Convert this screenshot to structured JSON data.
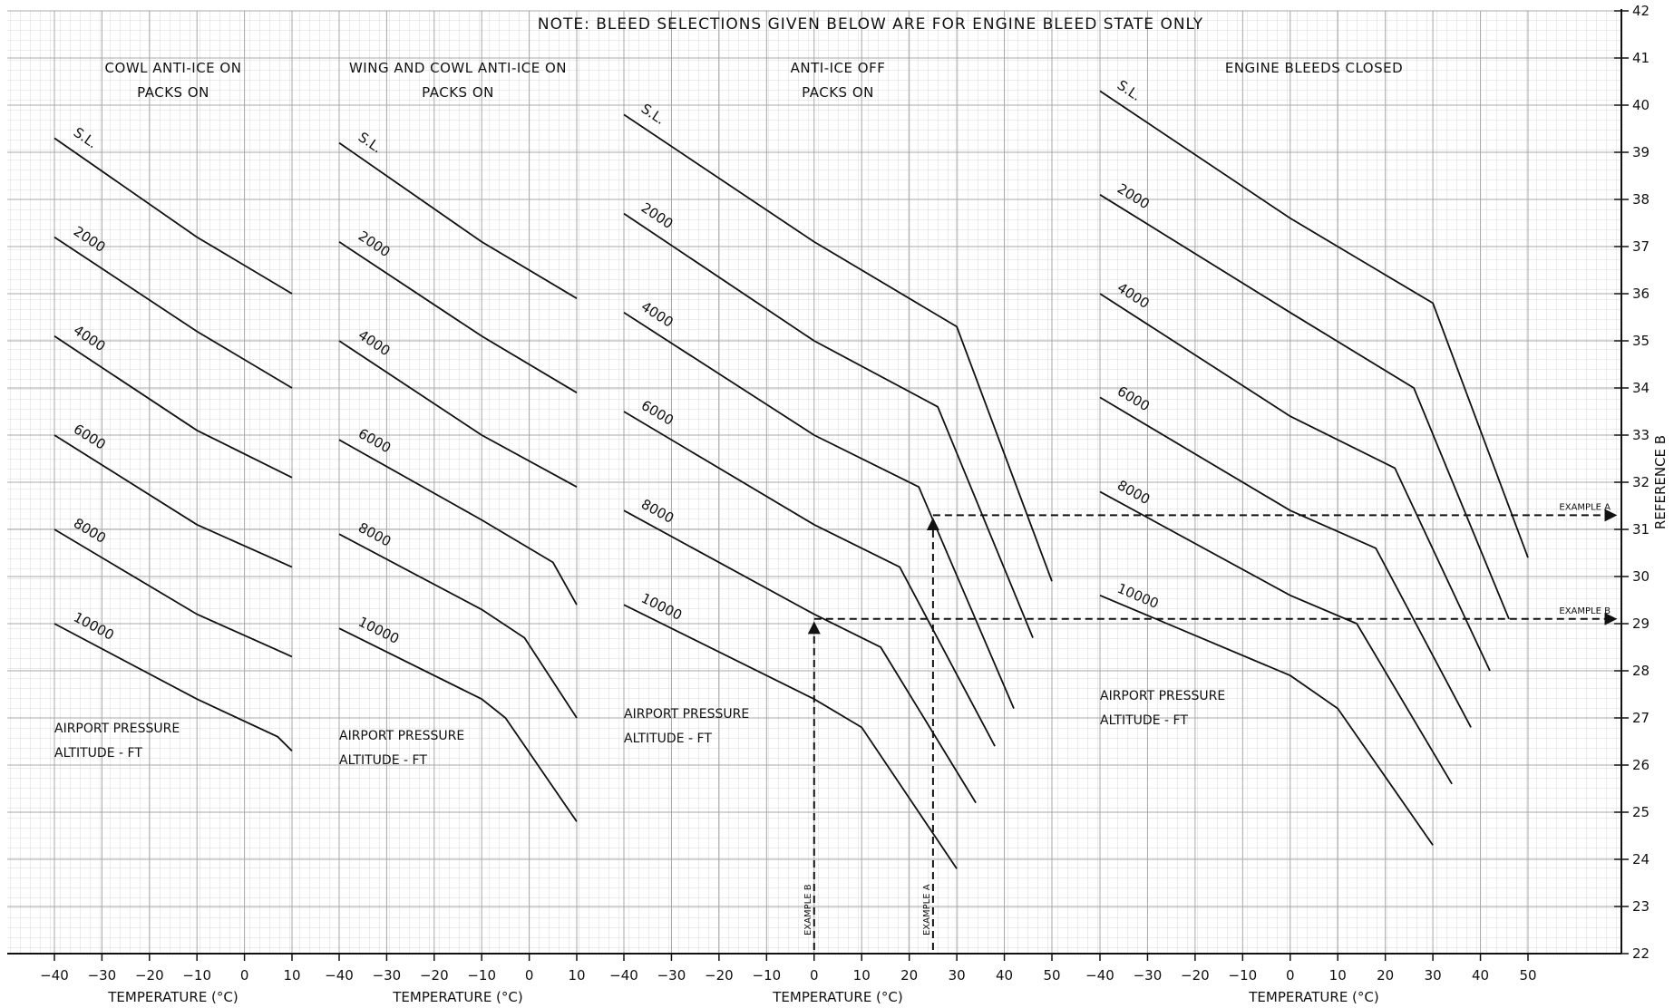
{
  "note": "NOTE: BLEED SELECTIONS GIVEN BELOW ARE FOR ENGINE BLEED STATE ONLY",
  "reference_label": "REFERENCE B",
  "annotation_line1": "AIRPORT PRESSURE",
  "annotation_line2": "ALTITUDE - FT",
  "chart_data": {
    "type": "line",
    "title": "",
    "ylabel": "REFERENCE B",
    "ylim": [
      22,
      42
    ],
    "y_ticks": [
      22,
      23,
      24,
      25,
      26,
      27,
      28,
      29,
      30,
      31,
      32,
      33,
      34,
      35,
      36,
      37,
      38,
      39,
      40,
      41,
      42
    ],
    "grid": true,
    "panels": [
      {
        "title_line1": "COWL ANTI-ICE ON",
        "title_line2": "PACKS ON",
        "xlabel": "TEMPERATURE (°C)",
        "xlim": [
          -40,
          10
        ],
        "x_ticks": [
          -40,
          -30,
          -20,
          -10,
          0,
          10
        ],
        "series": [
          {
            "name": "S.L.",
            "points": [
              [
                -40,
                39.3
              ],
              [
                -10,
                37.2
              ],
              [
                10,
                36.0
              ]
            ]
          },
          {
            "name": "2000",
            "points": [
              [
                -40,
                37.2
              ],
              [
                -10,
                35.2
              ],
              [
                10,
                34.0
              ]
            ]
          },
          {
            "name": "4000",
            "points": [
              [
                -40,
                35.1
              ],
              [
                -10,
                33.1
              ],
              [
                10,
                32.1
              ]
            ]
          },
          {
            "name": "6000",
            "points": [
              [
                -40,
                33.0
              ],
              [
                -10,
                31.1
              ],
              [
                10,
                30.2
              ]
            ]
          },
          {
            "name": "8000",
            "points": [
              [
                -40,
                31.0
              ],
              [
                -10,
                29.2
              ],
              [
                10,
                28.3
              ]
            ]
          },
          {
            "name": "10000",
            "points": [
              [
                -40,
                29.0
              ],
              [
                -10,
                27.4
              ],
              [
                7,
                26.6
              ],
              [
                10,
                26.3
              ]
            ]
          }
        ]
      },
      {
        "title_line1": "WING AND COWL ANTI-ICE ON",
        "title_line2": "PACKS ON",
        "xlabel": "TEMPERATURE (°C)",
        "xlim": [
          -40,
          10
        ],
        "x_ticks": [
          -40,
          -30,
          -20,
          -10,
          0,
          10
        ],
        "series": [
          {
            "name": "S.L.",
            "points": [
              [
                -40,
                39.2
              ],
              [
                -10,
                37.1
              ],
              [
                10,
                35.9
              ]
            ]
          },
          {
            "name": "2000",
            "points": [
              [
                -40,
                37.1
              ],
              [
                -10,
                35.1
              ],
              [
                10,
                33.9
              ]
            ]
          },
          {
            "name": "4000",
            "points": [
              [
                -40,
                35.0
              ],
              [
                -10,
                33.0
              ],
              [
                10,
                31.9
              ]
            ]
          },
          {
            "name": "6000",
            "points": [
              [
                -40,
                32.9
              ],
              [
                -10,
                31.2
              ],
              [
                5,
                30.3
              ],
              [
                10,
                29.4
              ]
            ]
          },
          {
            "name": "8000",
            "points": [
              [
                -40,
                30.9
              ],
              [
                -10,
                29.3
              ],
              [
                -1,
                28.7
              ],
              [
                10,
                27.0
              ]
            ]
          },
          {
            "name": "10000",
            "points": [
              [
                -40,
                28.9
              ],
              [
                -10,
                27.4
              ],
              [
                -5,
                27.0
              ],
              [
                10,
                24.8
              ]
            ]
          }
        ]
      },
      {
        "title_line1": "ANTI-ICE OFF",
        "title_line2": "PACKS ON",
        "xlabel": "TEMPERATURE (°C)",
        "xlim": [
          -40,
          50
        ],
        "x_ticks": [
          -40,
          -30,
          -20,
          -10,
          0,
          10,
          20,
          30,
          40,
          50
        ],
        "series": [
          {
            "name": "S.L.",
            "points": [
              [
                -40,
                39.8
              ],
              [
                0,
                37.1
              ],
              [
                30,
                35.3
              ],
              [
                50,
                29.9
              ]
            ]
          },
          {
            "name": "2000",
            "points": [
              [
                -40,
                37.7
              ],
              [
                0,
                35.0
              ],
              [
                26,
                33.6
              ],
              [
                46,
                28.7
              ]
            ]
          },
          {
            "name": "4000",
            "points": [
              [
                -40,
                35.6
              ],
              [
                0,
                33.0
              ],
              [
                22,
                31.9
              ],
              [
                42,
                27.2
              ]
            ]
          },
          {
            "name": "6000",
            "points": [
              [
                -40,
                33.5
              ],
              [
                0,
                31.1
              ],
              [
                18,
                30.2
              ],
              [
                38,
                26.4
              ]
            ]
          },
          {
            "name": "8000",
            "points": [
              [
                -40,
                31.4
              ],
              [
                0,
                29.2
              ],
              [
                14,
                28.5
              ],
              [
                34,
                25.2
              ]
            ]
          },
          {
            "name": "10000",
            "points": [
              [
                -40,
                29.4
              ],
              [
                0,
                27.4
              ],
              [
                10,
                26.8
              ],
              [
                30,
                23.8
              ]
            ]
          }
        ],
        "guides": [
          {
            "name": "EXAMPLE A",
            "x": 25,
            "y": 31.3
          },
          {
            "name": "EXAMPLE B",
            "x": 0,
            "y": 29.1
          }
        ]
      },
      {
        "title_line1": "ENGINE BLEEDS CLOSED",
        "title_line2": "",
        "xlabel": "TEMPERATURE (°C)",
        "xlim": [
          -40,
          50
        ],
        "x_ticks": [
          -40,
          -30,
          -20,
          -10,
          0,
          10,
          20,
          30,
          40,
          50
        ],
        "series": [
          {
            "name": "S.L.",
            "points": [
              [
                -40,
                40.3
              ],
              [
                0,
                37.6
              ],
              [
                30,
                35.8
              ],
              [
                50,
                30.4
              ]
            ]
          },
          {
            "name": "2000",
            "points": [
              [
                -40,
                38.1
              ],
              [
                0,
                35.6
              ],
              [
                26,
                34.0
              ],
              [
                46,
                29.1
              ]
            ]
          },
          {
            "name": "4000",
            "points": [
              [
                -40,
                36.0
              ],
              [
                0,
                33.4
              ],
              [
                22,
                32.3
              ],
              [
                42,
                28.0
              ]
            ]
          },
          {
            "name": "6000",
            "points": [
              [
                -40,
                33.8
              ],
              [
                0,
                31.4
              ],
              [
                18,
                30.6
              ],
              [
                38,
                26.8
              ]
            ]
          },
          {
            "name": "8000",
            "points": [
              [
                -40,
                31.8
              ],
              [
                0,
                29.6
              ],
              [
                14,
                29.0
              ],
              [
                34,
                25.6
              ]
            ]
          },
          {
            "name": "10000",
            "points": [
              [
                -40,
                29.6
              ],
              [
                0,
                27.9
              ],
              [
                10,
                27.2
              ],
              [
                30,
                24.3
              ]
            ]
          }
        ]
      }
    ],
    "examples": [
      {
        "name": "EXAMPLE A",
        "ref_y": 31.3
      },
      {
        "name": "EXAMPLE B",
        "ref_y": 29.1
      }
    ]
  }
}
